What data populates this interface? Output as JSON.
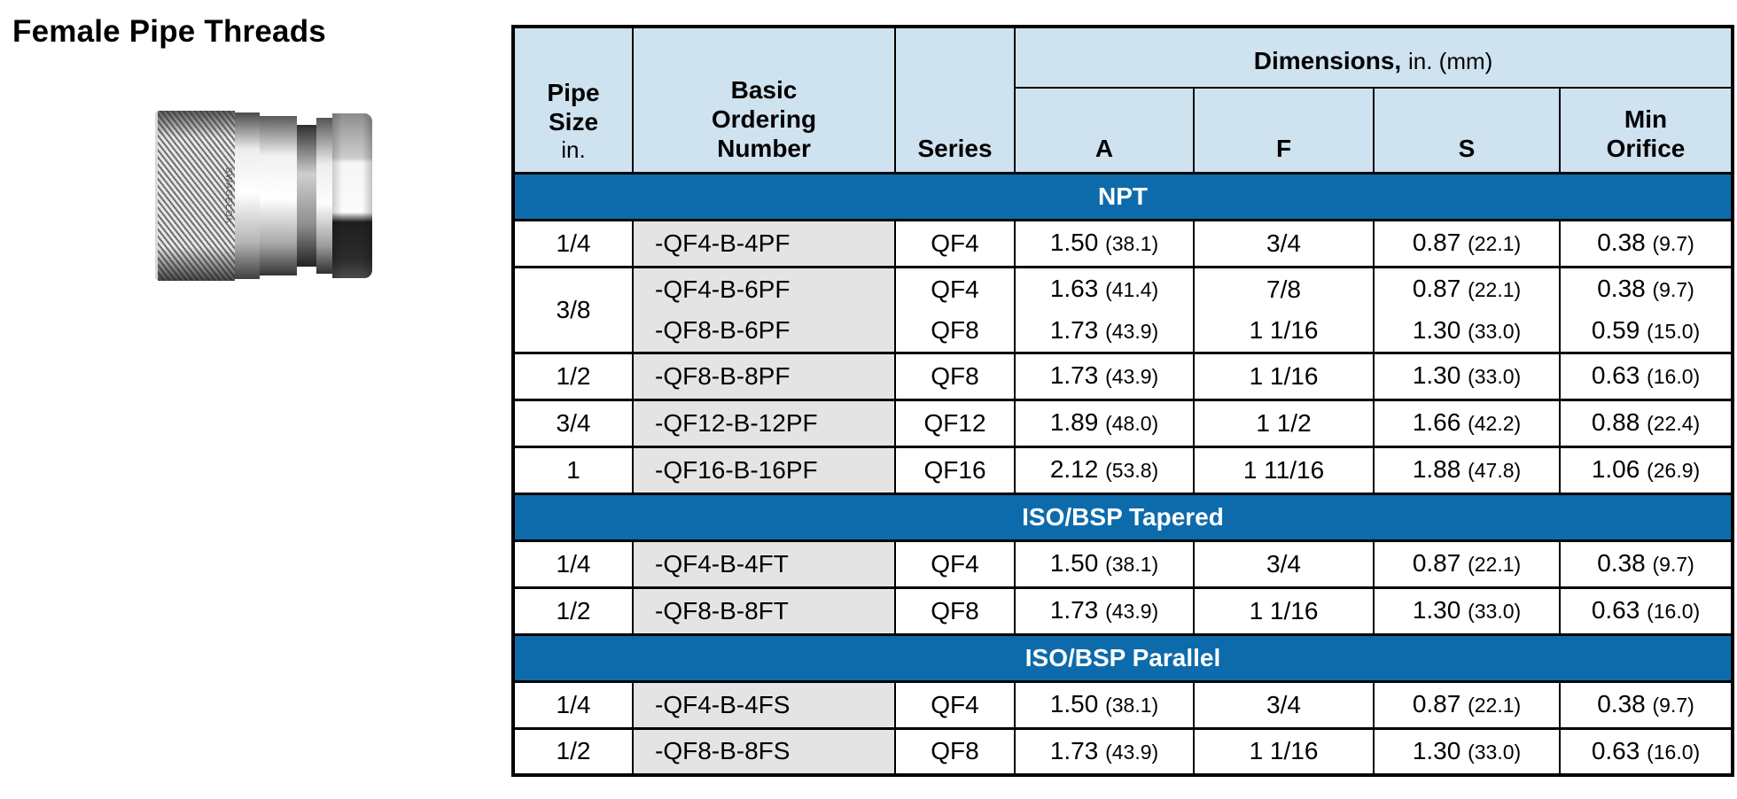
{
  "page_title": "Female Pipe Threads",
  "product_image": {
    "engraving": "SWAGELOK"
  },
  "colors": {
    "band_blue": "#0d6bab",
    "header_blue": "#cfe2ef",
    "ordering_col_gray": "#e4e4e4"
  },
  "table": {
    "columns": {
      "pipe_size_title": "Pipe Size",
      "pipe_size_unit": "in.",
      "ordering_title": "Basic Ordering Number",
      "series_title": "Series",
      "dimensions_title": "Dimensions,",
      "dimensions_unit": "in. (mm)",
      "dims": [
        "A",
        "F",
        "S",
        "Min Orifice"
      ]
    },
    "sections": [
      {
        "name": "NPT",
        "rows": [
          {
            "pipe_size": "1/4",
            "ordering_numbers": [
              "-QF4-B-4PF"
            ],
            "series": [
              "QF4"
            ],
            "a": [
              "1.50 (38.1)"
            ],
            "f": [
              "3/4"
            ],
            "s": [
              "0.87 (22.1)"
            ],
            "min_orifice": [
              "0.38 (9.7)"
            ]
          },
          {
            "pipe_size": "3/8",
            "ordering_numbers": [
              "-QF4-B-6PF",
              "-QF8-B-6PF"
            ],
            "series": [
              "QF4",
              "QF8"
            ],
            "a": [
              "1.63 (41.4)",
              "1.73 (43.9)"
            ],
            "f": [
              "7/8",
              "1 1/16"
            ],
            "s": [
              "0.87 (22.1)",
              "1.30 (33.0)"
            ],
            "min_orifice": [
              "0.38 (9.7)",
              "0.59 (15.0)"
            ]
          },
          {
            "pipe_size": "1/2",
            "ordering_numbers": [
              "-QF8-B-8PF"
            ],
            "series": [
              "QF8"
            ],
            "a": [
              "1.73 (43.9)"
            ],
            "f": [
              "1 1/16"
            ],
            "s": [
              "1.30 (33.0)"
            ],
            "min_orifice": [
              "0.63 (16.0)"
            ]
          },
          {
            "pipe_size": "3/4",
            "ordering_numbers": [
              "-QF12-B-12PF"
            ],
            "series": [
              "QF12"
            ],
            "a": [
              "1.89 (48.0)"
            ],
            "f": [
              "1 1/2"
            ],
            "s": [
              "1.66 (42.2)"
            ],
            "min_orifice": [
              "0.88 (22.4)"
            ]
          },
          {
            "pipe_size": "1",
            "ordering_numbers": [
              "-QF16-B-16PF"
            ],
            "series": [
              "QF16"
            ],
            "a": [
              "2.12 (53.8)"
            ],
            "f": [
              "1 11/16"
            ],
            "s": [
              "1.88 (47.8)"
            ],
            "min_orifice": [
              "1.06 (26.9)"
            ]
          }
        ]
      },
      {
        "name": "ISO/BSP Tapered",
        "rows": [
          {
            "pipe_size": "1/4",
            "ordering_numbers": [
              "-QF4-B-4FT"
            ],
            "series": [
              "QF4"
            ],
            "a": [
              "1.50 (38.1)"
            ],
            "f": [
              "3/4"
            ],
            "s": [
              "0.87 (22.1)"
            ],
            "min_orifice": [
              "0.38 (9.7)"
            ]
          },
          {
            "pipe_size": "1/2",
            "ordering_numbers": [
              "-QF8-B-8FT"
            ],
            "series": [
              "QF8"
            ],
            "a": [
              "1.73 (43.9)"
            ],
            "f": [
              "1 1/16"
            ],
            "s": [
              "1.30 (33.0)"
            ],
            "min_orifice": [
              "0.63 (16.0)"
            ]
          }
        ]
      },
      {
        "name": "ISO/BSP Parallel",
        "rows": [
          {
            "pipe_size": "1/4",
            "ordering_numbers": [
              "-QF4-B-4FS"
            ],
            "series": [
              "QF4"
            ],
            "a": [
              "1.50 (38.1)"
            ],
            "f": [
              "3/4"
            ],
            "s": [
              "0.87 (22.1)"
            ],
            "min_orifice": [
              "0.38 (9.7)"
            ]
          },
          {
            "pipe_size": "1/2",
            "ordering_numbers": [
              "-QF8-B-8FS"
            ],
            "series": [
              "QF8"
            ],
            "a": [
              "1.73 (43.9)"
            ],
            "f": [
              "1 1/16"
            ],
            "s": [
              "1.30 (33.0)"
            ],
            "min_orifice": [
              "0.63 (16.0)"
            ]
          }
        ]
      }
    ]
  }
}
